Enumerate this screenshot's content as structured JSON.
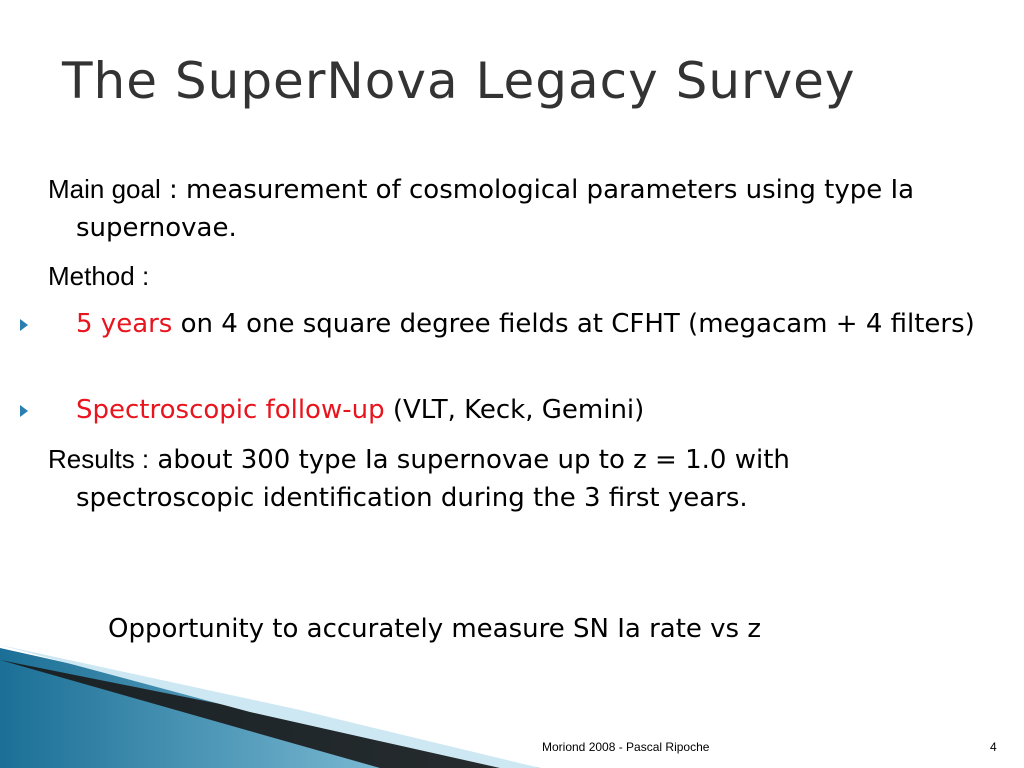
{
  "title": "The SuperNova Legacy Survey",
  "body": [
    {
      "lead": "Main goal",
      "text": " : measurement of cosmological parameters using type Ia supernovae."
    },
    {
      "lead": "Method :"
    },
    {
      "accent": "5 years",
      "text": " on 4 one square degree fields at CFHT (megacam + 4 filters)"
    },
    {
      "accent": "Spectroscopic follow-up",
      "text": " (VLT, Keck, Gemini)"
    },
    {
      "lead": "Results :",
      "text": " about 300 type Ia supernovae up to  z = 1.0 with spectroscopic identification during the 3 first years."
    }
  ],
  "conclusion": "Opportunity to accurately measure SN Ia rate vs z",
  "footer": {
    "text": "Moriond 2008 -  Pascal Ripoche",
    "page": "4"
  }
}
